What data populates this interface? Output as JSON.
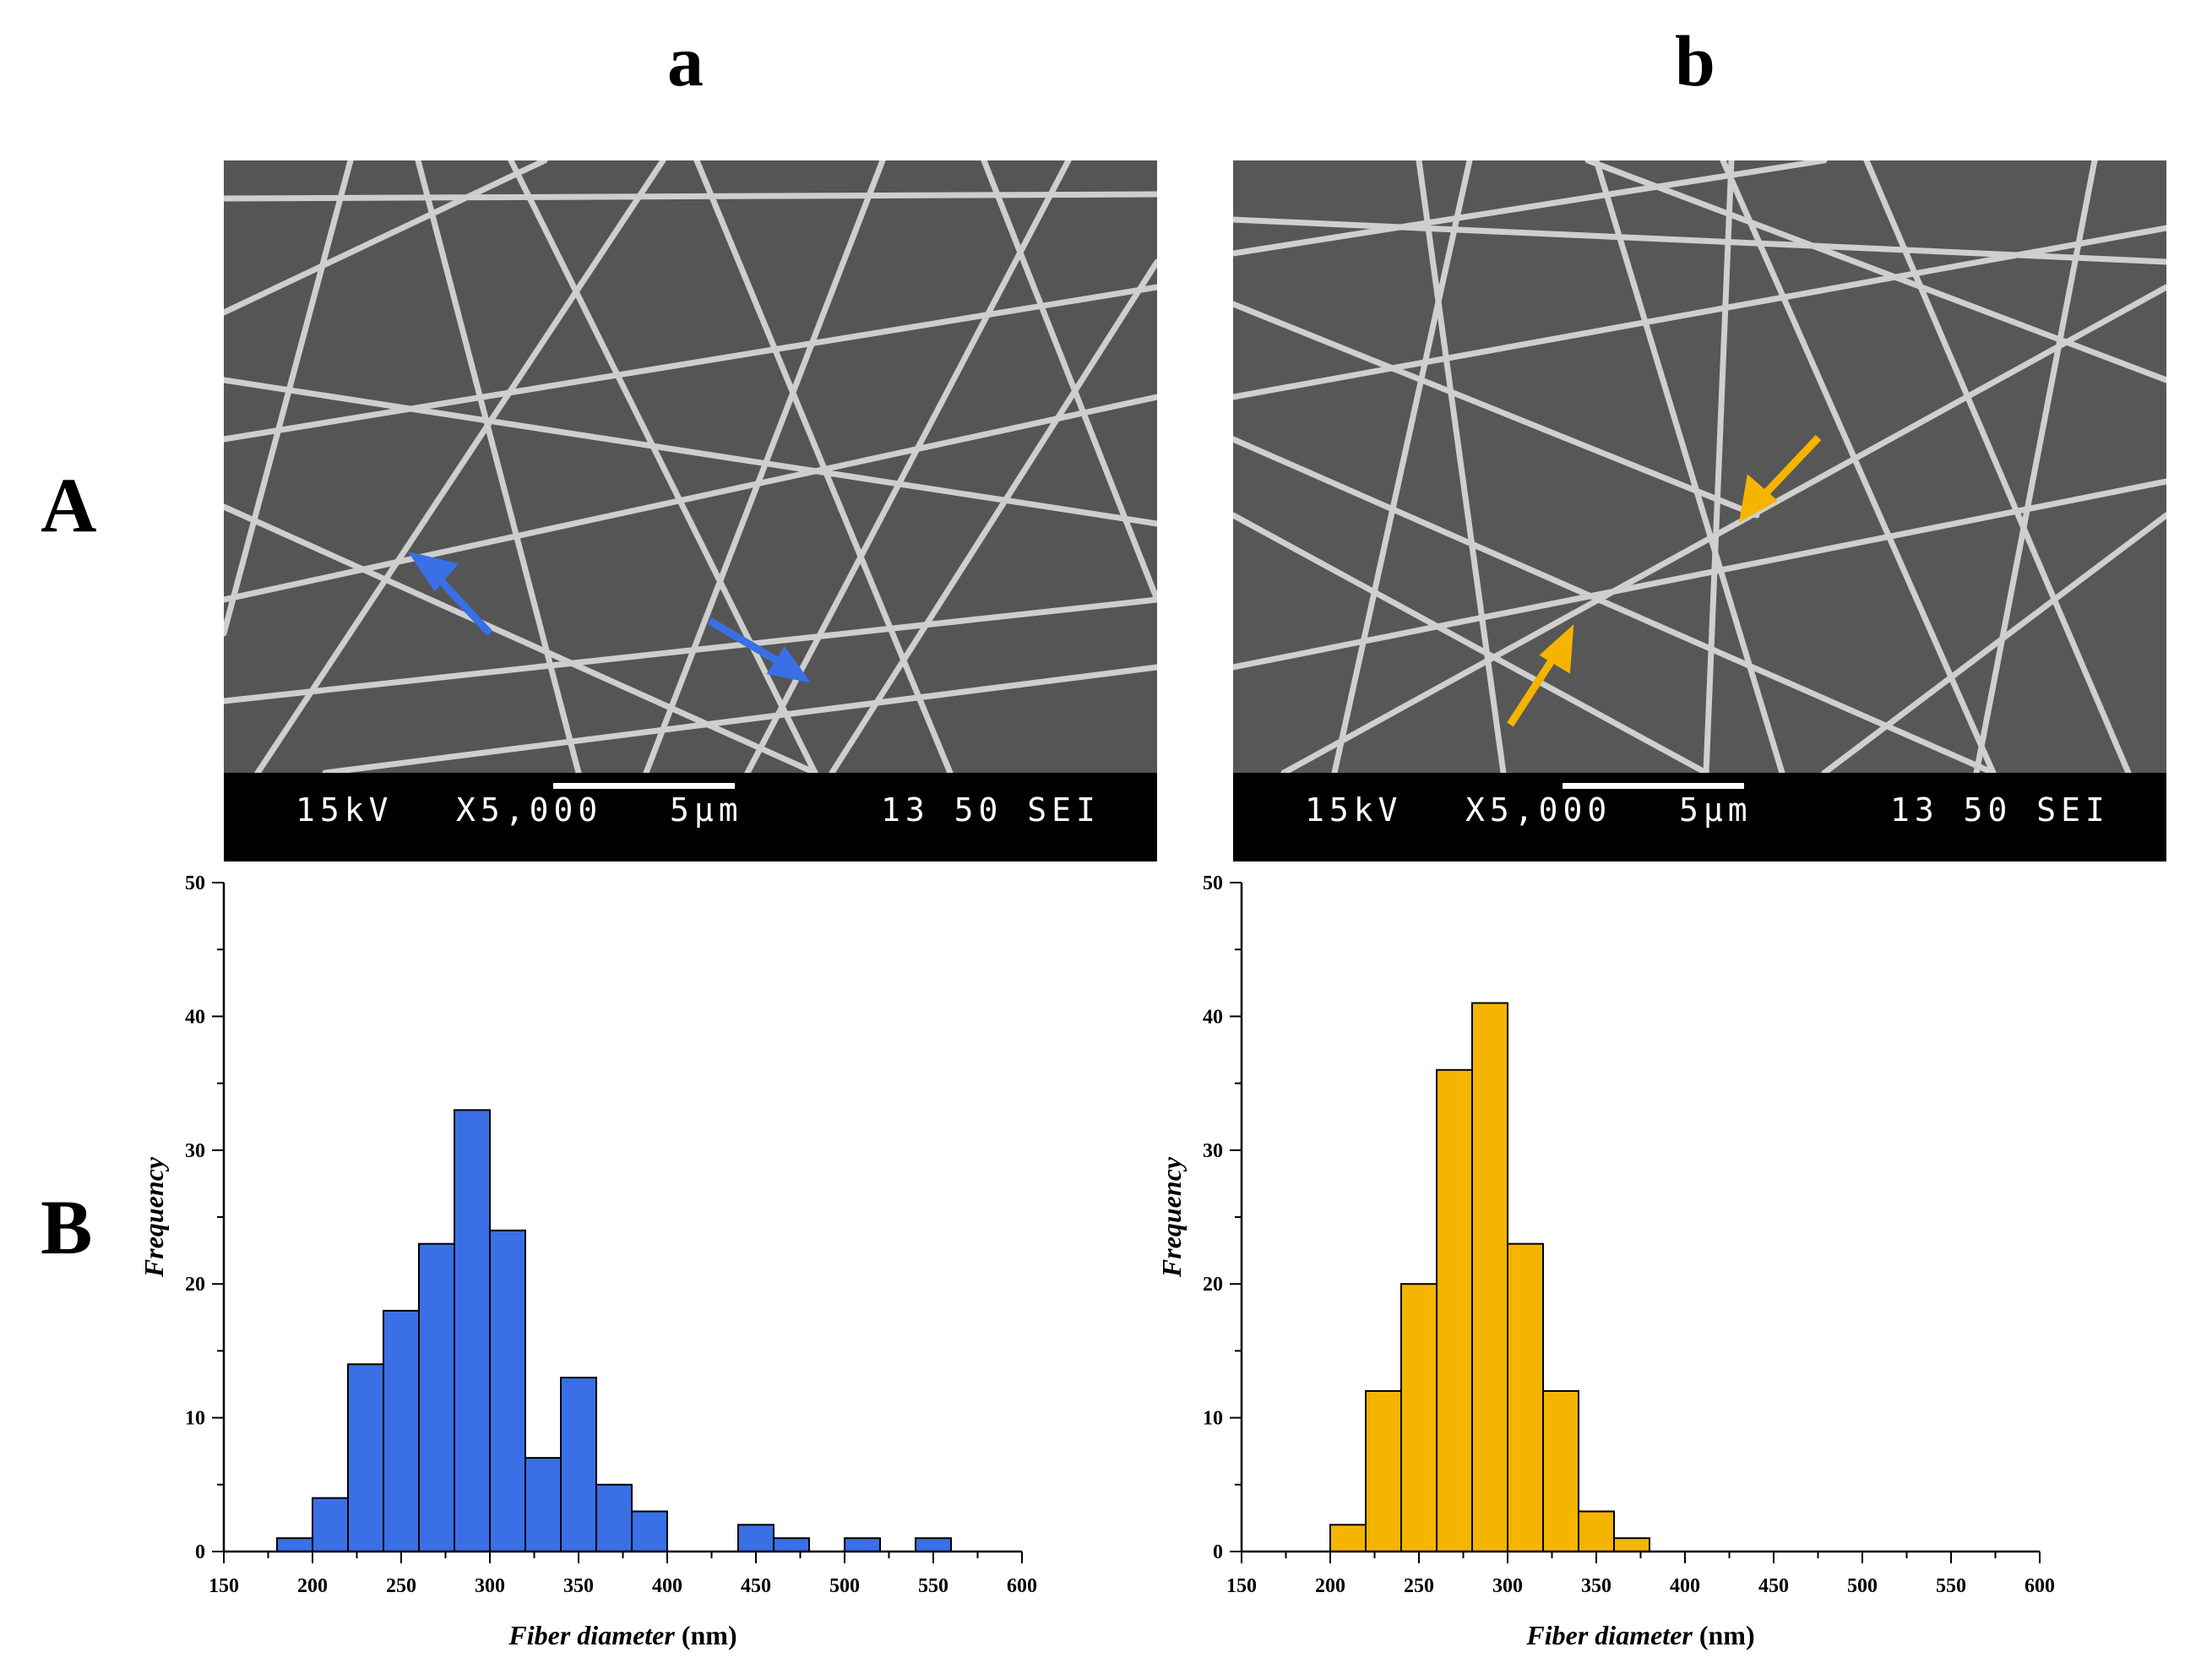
{
  "figure": {
    "column_labels": [
      "a",
      "b"
    ],
    "row_labels": [
      "A",
      "B"
    ]
  },
  "sem_panels": [
    {
      "id": "a",
      "info": {
        "voltage": "15kV",
        "magnification": "X5,000",
        "scale": "5µm",
        "code": "13 50 SEI"
      },
      "arrow_color": "#3a6fe6"
    },
    {
      "id": "b",
      "info": {
        "voltage": "15kV",
        "magnification": "X5,000",
        "scale": "5µm",
        "code": "13 50 SEI"
      },
      "arrow_color": "#f5b400"
    }
  ],
  "chart_data": [
    {
      "type": "bar",
      "panel": "B-a",
      "title": "",
      "xlabel_italic": "Fiber diameter",
      "xlabel_unit": " (nm)",
      "ylabel": "Frequency",
      "xlim": [
        150,
        600
      ],
      "ylim": [
        0,
        50
      ],
      "xticks": [
        "150",
        "200",
        "250",
        "300",
        "350",
        "400",
        "450",
        "500",
        "550",
        "600"
      ],
      "yticks": [
        "0",
        "10",
        "20",
        "30",
        "40",
        "50"
      ],
      "bin_width": 20,
      "color": "#3a6fe6",
      "bins": [
        {
          "x0": 180,
          "value": 1
        },
        {
          "x0": 200,
          "value": 4
        },
        {
          "x0": 220,
          "value": 14
        },
        {
          "x0": 240,
          "value": 18
        },
        {
          "x0": 260,
          "value": 23
        },
        {
          "x0": 280,
          "value": 33
        },
        {
          "x0": 300,
          "value": 24
        },
        {
          "x0": 320,
          "value": 7
        },
        {
          "x0": 340,
          "value": 13
        },
        {
          "x0": 360,
          "value": 5
        },
        {
          "x0": 380,
          "value": 3
        },
        {
          "x0": 440,
          "value": 2
        },
        {
          "x0": 460,
          "value": 1
        },
        {
          "x0": 500,
          "value": 1
        },
        {
          "x0": 540,
          "value": 1
        }
      ]
    },
    {
      "type": "bar",
      "panel": "B-b",
      "title": "",
      "xlabel_italic": "Fiber diameter",
      "xlabel_unit": " (nm)",
      "ylabel": "Frequency",
      "xlim": [
        150,
        600
      ],
      "ylim": [
        0,
        50
      ],
      "xticks": [
        "150",
        "200",
        "250",
        "300",
        "350",
        "400",
        "450",
        "500",
        "550",
        "600"
      ],
      "yticks": [
        "0",
        "10",
        "20",
        "30",
        "40",
        "50"
      ],
      "bin_width": 20,
      "color": "#f5b400",
      "bins": [
        {
          "x0": 200,
          "value": 2
        },
        {
          "x0": 220,
          "value": 12
        },
        {
          "x0": 240,
          "value": 20
        },
        {
          "x0": 260,
          "value": 36
        },
        {
          "x0": 280,
          "value": 41
        },
        {
          "x0": 300,
          "value": 23
        },
        {
          "x0": 320,
          "value": 12
        },
        {
          "x0": 340,
          "value": 3
        },
        {
          "x0": 360,
          "value": 1
        }
      ]
    }
  ]
}
